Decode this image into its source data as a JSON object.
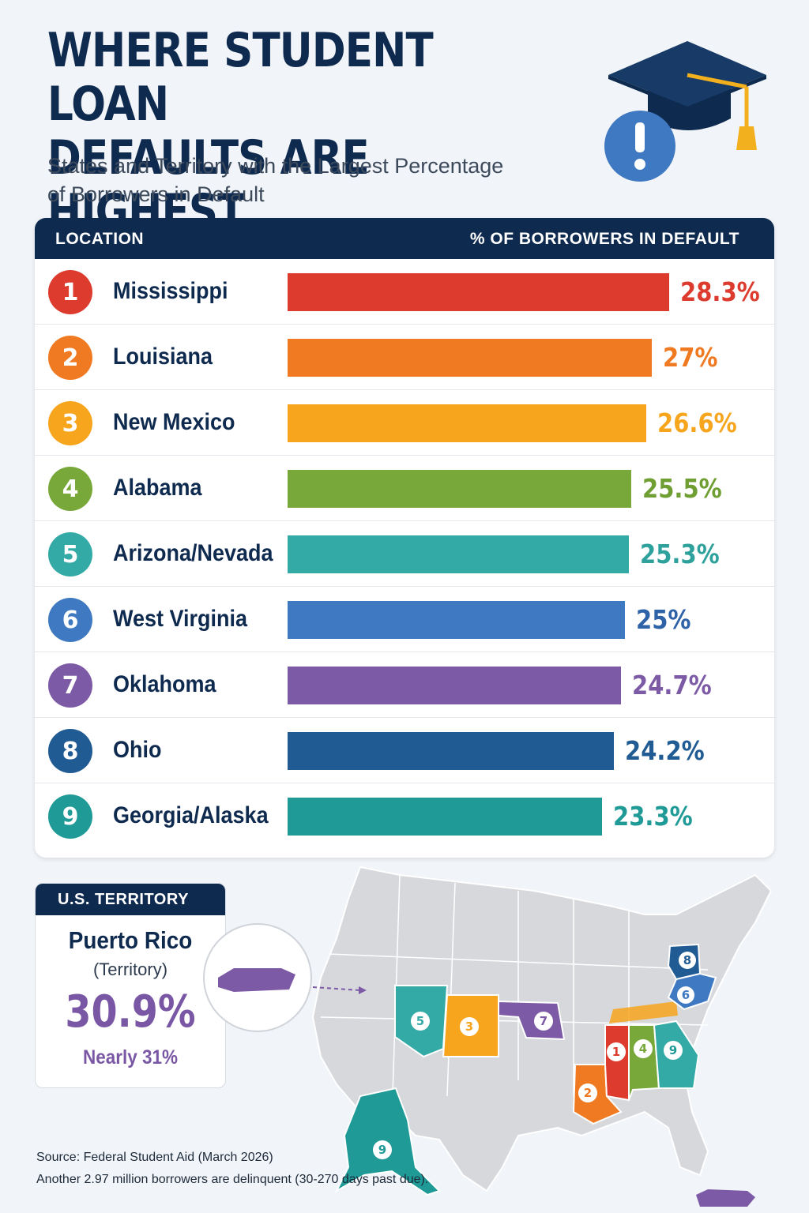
{
  "header": {
    "title_line1": "WHERE STUDENT LOAN",
    "title_line2": "DEFAULTS ARE HIGHEST",
    "subtitle_line1": "States and Territory with the Largest Percentage",
    "subtitle_line2": "of Borrowers in Default",
    "icon": "graduation-cap-alert-icon"
  },
  "table": {
    "col_location": "LOCATION",
    "col_value": "% OF BORROWERS IN DEFAULT"
  },
  "chart_data": {
    "type": "bar",
    "title": "WHERE STUDENT LOAN DEFAULTS ARE HIGHEST",
    "subtitle": "States and Territory with the Largest Percentage of Borrowers in Default",
    "xlabel": "LOCATION",
    "ylabel": "% OF BORROWERS IN DEFAULT",
    "categories": [
      "Mississippi",
      "Louisiana",
      "New Mexico",
      "Alabama",
      "Arizona/Nevada",
      "West Virginia",
      "Oklahoma",
      "Ohio",
      "Georgia/Alaska"
    ],
    "ranks": [
      "1",
      "2",
      "3",
      "4",
      "5",
      "6",
      "7",
      "8",
      "9"
    ],
    "values": [
      28.3,
      27,
      26.6,
      25.5,
      25.3,
      25,
      24.7,
      24.2,
      23.3
    ],
    "value_labels": [
      "28.3%",
      "27%",
      "26.6%",
      "25.5%",
      "25.3%",
      "25%",
      "24.7%",
      "24.2%",
      "23.3%"
    ],
    "colors": [
      "#dc3b2e",
      "#f07a22",
      "#f6a51d",
      "#78a83a",
      "#33aaa5",
      "#3f79c1",
      "#7c5aa6",
      "#215b93",
      "#1f9a96"
    ],
    "value_colors": [
      "#dc3b2e",
      "#f07a22",
      "#f6a51d",
      "#6f9e32",
      "#2ea19d",
      "#2f63a8",
      "#7c5aa6",
      "#215b93",
      "#1f9a96"
    ],
    "xlim": [
      0,
      28.3
    ]
  },
  "territory": {
    "header": "U.S. TERRITORY",
    "name": "Puerto Rico",
    "type": "(Territory)",
    "value": "30.9%",
    "note": "Nearly 31%",
    "value_numeric": 30.9,
    "color": "#7c5aa6"
  },
  "map": {
    "icon": "us-map-icon",
    "markers": [
      "1",
      "2",
      "3",
      "4",
      "5",
      "6",
      "7",
      "8",
      "9"
    ]
  },
  "footer": {
    "source": "Source: Federal Student Aid (March 2026)",
    "note": "Another 2.97 million borrowers are delinquent (30-270 days past due)."
  }
}
